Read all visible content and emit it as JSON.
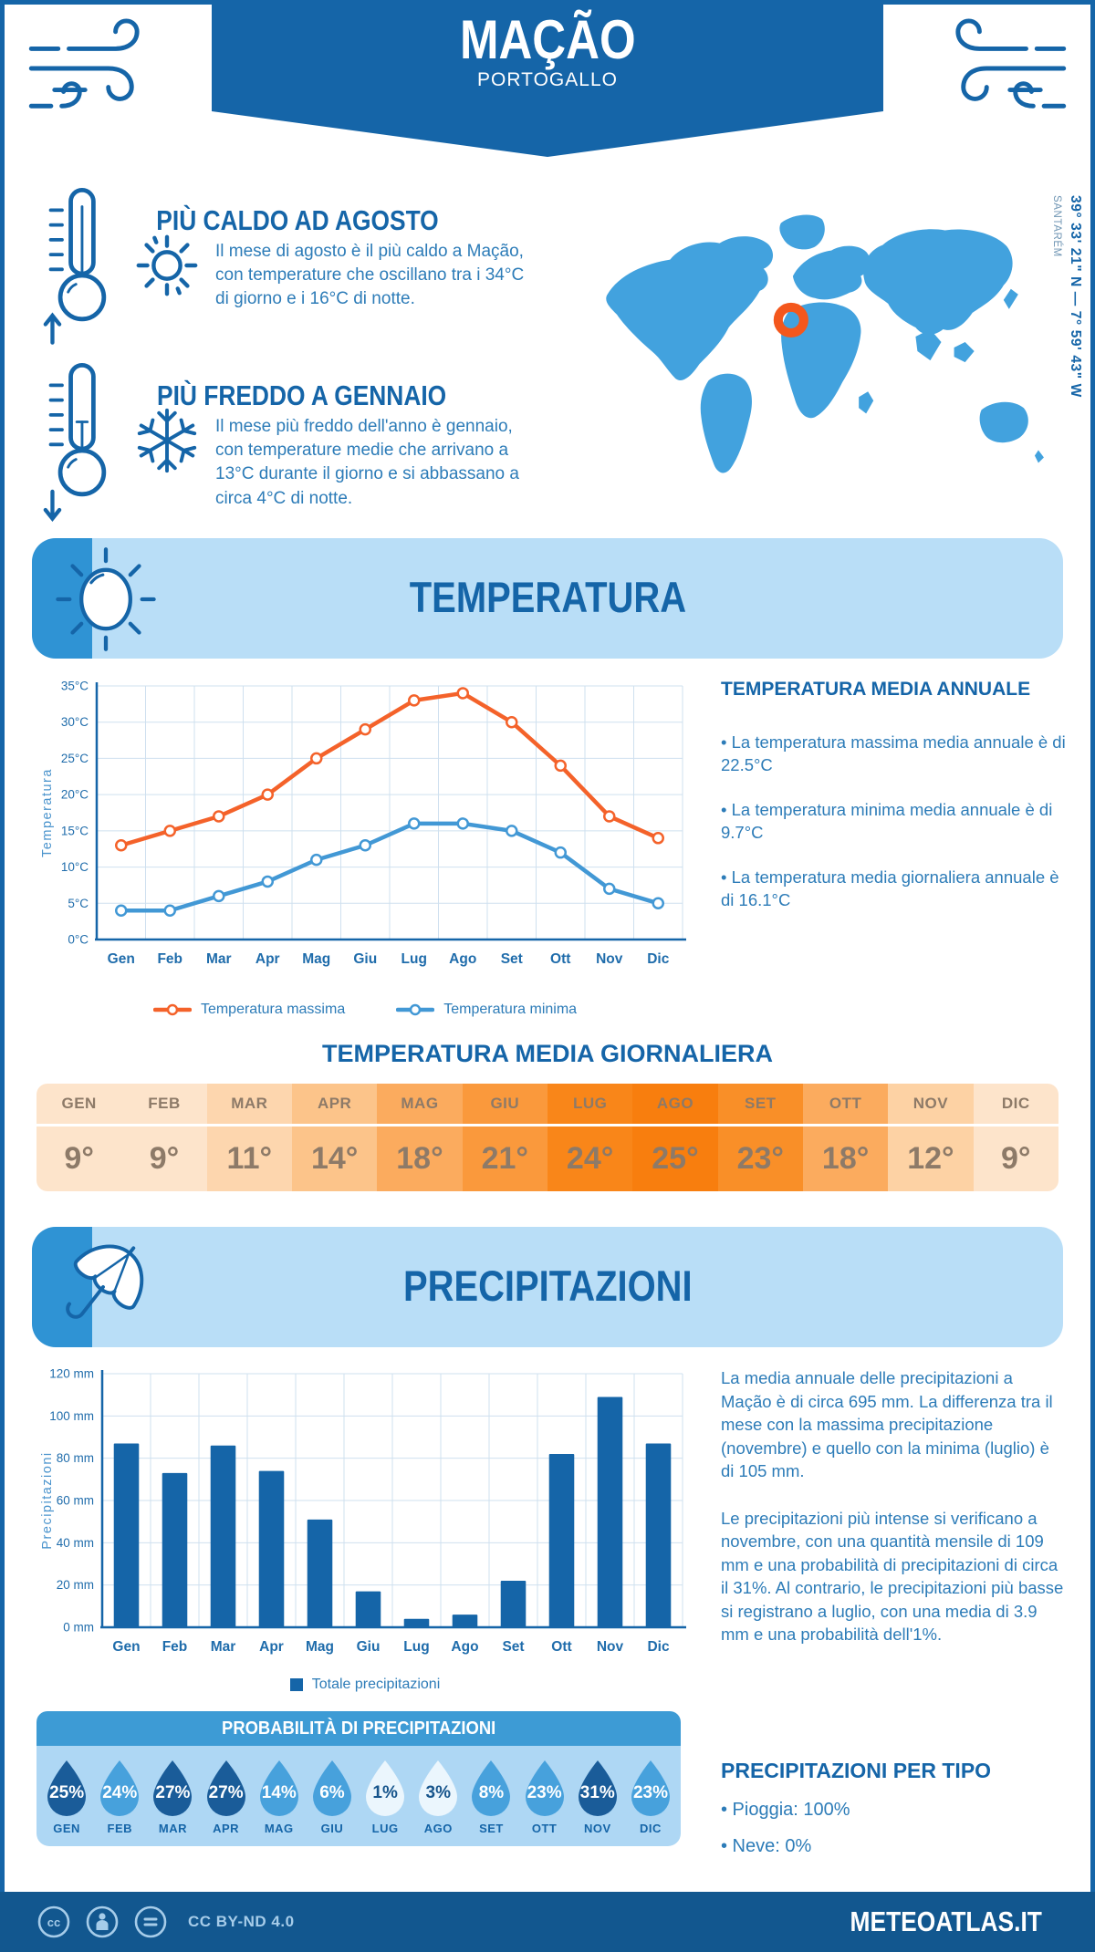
{
  "header": {
    "title": "MAÇÃO",
    "subtitle": "PORTOGALLO"
  },
  "highlights": [
    {
      "title": "PIÙ CALDO AD AGOSTO",
      "text": "Il mese di agosto è il più caldo a Mação, con temperature che oscillano tra i 34°C di giorno e i 16°C di notte."
    },
    {
      "title": "PIÙ FREDDO A GENNAIO",
      "text": "Il mese più freddo dell'anno è gennaio, con temperature medie che arrivano a 13°C durante il giorno e si abbassano a circa 4°C di notte."
    }
  ],
  "map": {
    "coordinates": "39° 33' 21\" N — 7° 59' 43\" W",
    "region": "SANTARÉM"
  },
  "sections": {
    "temperature": "TEMPERATURA",
    "precipitation": "PRECIPITAZIONI"
  },
  "chart_data": [
    {
      "type": "line",
      "categories": [
        "Gen",
        "Feb",
        "Mar",
        "Apr",
        "Mag",
        "Giu",
        "Lug",
        "Ago",
        "Set",
        "Ott",
        "Nov",
        "Dic"
      ],
      "series": [
        {
          "name": "Temperatura massima",
          "color": "#f4622a",
          "values": [
            13,
            15,
            17,
            20,
            25,
            29,
            33,
            34,
            30,
            24,
            17,
            14
          ]
        },
        {
          "name": "Temperatura minima",
          "color": "#4298d5",
          "values": [
            4,
            4,
            6,
            8,
            11,
            13,
            16,
            16,
            15,
            12,
            7,
            5
          ]
        }
      ],
      "title": "",
      "xlabel": "",
      "ylabel": "Temperatura",
      "ylim": [
        0,
        35
      ],
      "ytick_step": 5,
      "ytick_suffix": "°C",
      "grid": true,
      "legend_position": "bottom"
    },
    {
      "type": "bar",
      "categories": [
        "Gen",
        "Feb",
        "Mar",
        "Apr",
        "Mag",
        "Giu",
        "Lug",
        "Ago",
        "Set",
        "Ott",
        "Nov",
        "Dic"
      ],
      "values": [
        87,
        73,
        86,
        74,
        51,
        17,
        4,
        6,
        22,
        82,
        109,
        87
      ],
      "series_name": "Totale precipitazioni",
      "color": "#1565a8",
      "title": "",
      "xlabel": "",
      "ylabel": "Precipitazioni",
      "ylim": [
        0,
        120
      ],
      "ytick_step": 20,
      "ytick_suffix": " mm",
      "grid": true,
      "legend_position": "bottom"
    }
  ],
  "annual": {
    "heading": "TEMPERATURA MEDIA ANNUALE",
    "bullets": [
      "• La temperatura massima media annuale è di 22.5°C",
      "• La temperatura minima media annuale è di 9.7°C",
      "• La temperatura media giornaliera annuale è di 16.1°C"
    ]
  },
  "daily_table": {
    "title": "TEMPERATURA MEDIA GIORNALIERA",
    "months": [
      "GEN",
      "FEB",
      "MAR",
      "APR",
      "MAG",
      "GIU",
      "LUG",
      "AGO",
      "SET",
      "OTT",
      "NOV",
      "DIC"
    ],
    "values": [
      "9°",
      "9°",
      "11°",
      "14°",
      "18°",
      "21°",
      "24°",
      "25°",
      "23°",
      "18°",
      "12°",
      "9°"
    ],
    "cell_colors": [
      "#fde4cb",
      "#fde4cb",
      "#fdd6ae",
      "#fcc48a",
      "#fbab5e",
      "#fa993c",
      "#f98619",
      "#f87e0e",
      "#f98f28",
      "#fbab5e",
      "#fdd2a4",
      "#fde4cb"
    ]
  },
  "precipitation_summary": {
    "paragraphs": [
      "La media annuale delle precipitazioni a Mação è di circa 695 mm. La differenza tra il mese con la massima precipitazione (novembre) e quello con la minima (luglio) è di 105 mm.",
      "Le precipitazioni più intense si verificano a novembre, con una quantità mensile di 109 mm e una probabilità di precipitazioni di circa il 31%. Al contrario, le precipitazioni più basse si registrano a luglio, con una media di 3.9 mm e una probabilità dell'1%."
    ]
  },
  "probability": {
    "title": "PROBABILITÀ DI PRECIPITAZIONI",
    "items": [
      {
        "month": "GEN",
        "value": "25%",
        "level": "dark"
      },
      {
        "month": "FEB",
        "value": "24%",
        "level": "medium"
      },
      {
        "month": "MAR",
        "value": "27%",
        "level": "dark"
      },
      {
        "month": "APR",
        "value": "27%",
        "level": "dark"
      },
      {
        "month": "MAG",
        "value": "14%",
        "level": "medium"
      },
      {
        "month": "GIU",
        "value": "6%",
        "level": "medium"
      },
      {
        "month": "LUG",
        "value": "1%",
        "level": "light"
      },
      {
        "month": "AGO",
        "value": "3%",
        "level": "light"
      },
      {
        "month": "SET",
        "value": "8%",
        "level": "medium"
      },
      {
        "month": "OTT",
        "value": "23%",
        "level": "medium"
      },
      {
        "month": "NOV",
        "value": "31%",
        "level": "dark"
      },
      {
        "month": "DIC",
        "value": "23%",
        "level": "medium"
      }
    ],
    "level_colors": {
      "dark": "#1a5c99",
      "medium": "#47a1dc",
      "light": "#ebf6fd"
    }
  },
  "precip_type": {
    "heading": "PRECIPITAZIONI PER TIPO",
    "bullets": [
      "• Pioggia: 100%",
      "• Neve: 0%"
    ]
  },
  "footer": {
    "license": "CC BY-ND 4.0",
    "site": "METEOATLAS.IT"
  },
  "colors": {
    "primary_blue": "#1565a8",
    "body_blue": "#2d7cb8",
    "band_bg": "#b9def7",
    "band_strip": "#2f93d4",
    "map_blue": "#42a2de",
    "marker_orange": "#f4571c",
    "grid": "#cfe0ef",
    "table_text": "#8d7a68",
    "prob_header_bg": "#3d9bd5",
    "prob_body_bg": "#aed7f4",
    "footer_bg": "#12578f",
    "footer_muted": "#a6cce9"
  }
}
